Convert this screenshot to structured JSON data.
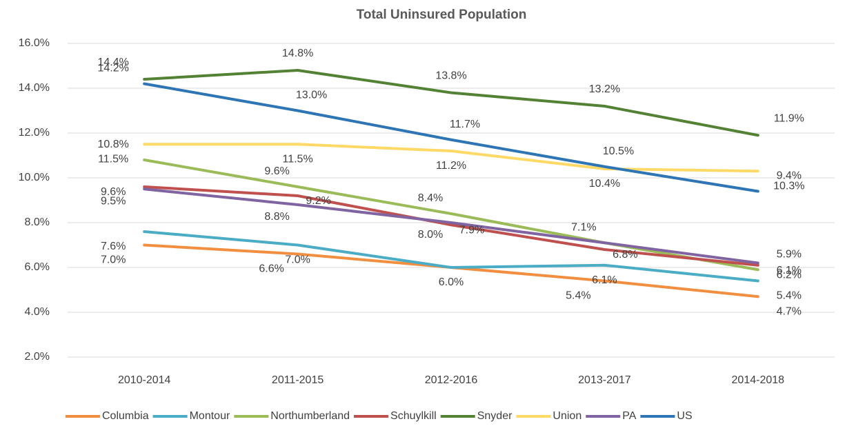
{
  "chart_data": {
    "type": "line",
    "title": "Total Uninsured Population",
    "categories": [
      "2010-2014",
      "2011-2015",
      "2012-2016",
      "2013-2017",
      "2014-2018"
    ],
    "ylim": [
      2,
      16
    ],
    "yticks": [
      {
        "value": 2,
        "label": "2.0%"
      },
      {
        "value": 4,
        "label": "4.0%"
      },
      {
        "value": 6,
        "label": "6.0%"
      },
      {
        "value": 8,
        "label": "8.0%"
      },
      {
        "value": 10,
        "label": "10.0%"
      },
      {
        "value": 12,
        "label": "12.0%"
      },
      {
        "value": 14,
        "label": "14.0%"
      },
      {
        "value": 16,
        "label": "16.0%"
      }
    ],
    "grid": true,
    "legend": "bottom",
    "series": [
      {
        "name": "Columbia",
        "color": "#F28E3F",
        "values": [
          7.0,
          6.6,
          6.0,
          5.4,
          4.7
        ],
        "value_labels": [
          "7.0%",
          "6.6%",
          null,
          "5.4%",
          "4.7%"
        ]
      },
      {
        "name": "Montour",
        "color": "#4BACC6",
        "values": [
          7.6,
          7.0,
          6.0,
          6.1,
          5.4
        ],
        "value_labels": [
          "7.6%",
          "7.0%",
          "6.0%",
          "6.1%",
          "5.4%"
        ]
      },
      {
        "name": "Northumberland",
        "color": "#9BBB59",
        "values": [
          10.8,
          9.6,
          8.4,
          7.1,
          5.9
        ],
        "value_labels": [
          "10.8%",
          "9.6%",
          "8.4%",
          "7.1%",
          "5.9%"
        ]
      },
      {
        "name": "Schuylkill",
        "color": "#C0504D",
        "values": [
          9.6,
          9.2,
          7.9,
          6.8,
          6.1
        ],
        "value_labels": [
          "9.6%",
          "9.2%",
          "7.9%",
          "6.8%",
          "6.1%"
        ]
      },
      {
        "name": "Snyder",
        "color": "#548235",
        "values": [
          14.4,
          14.8,
          13.8,
          13.2,
          11.9
        ],
        "value_labels": [
          "14.4%",
          "14.8%",
          "13.8%",
          "13.2%",
          "11.9%"
        ]
      },
      {
        "name": "Union",
        "color": "#FFD966",
        "values": [
          11.5,
          11.5,
          11.2,
          10.4,
          10.3
        ],
        "value_labels": [
          "11.5%",
          "11.5%",
          "11.2%",
          "10.4%",
          "10.3%"
        ]
      },
      {
        "name": "PA",
        "color": "#8064A2",
        "values": [
          9.5,
          8.8,
          8.0,
          7.1,
          6.2
        ],
        "value_labels": [
          "9.5%",
          "8.8%",
          "8.0%",
          null,
          "6.2%"
        ]
      },
      {
        "name": "US",
        "color": "#2E75B6",
        "values": [
          14.2,
          13.0,
          11.7,
          10.5,
          9.4
        ],
        "value_labels": [
          "14.2%",
          "13.0%",
          "11.7%",
          "10.5%",
          "9.4%"
        ]
      }
    ]
  }
}
